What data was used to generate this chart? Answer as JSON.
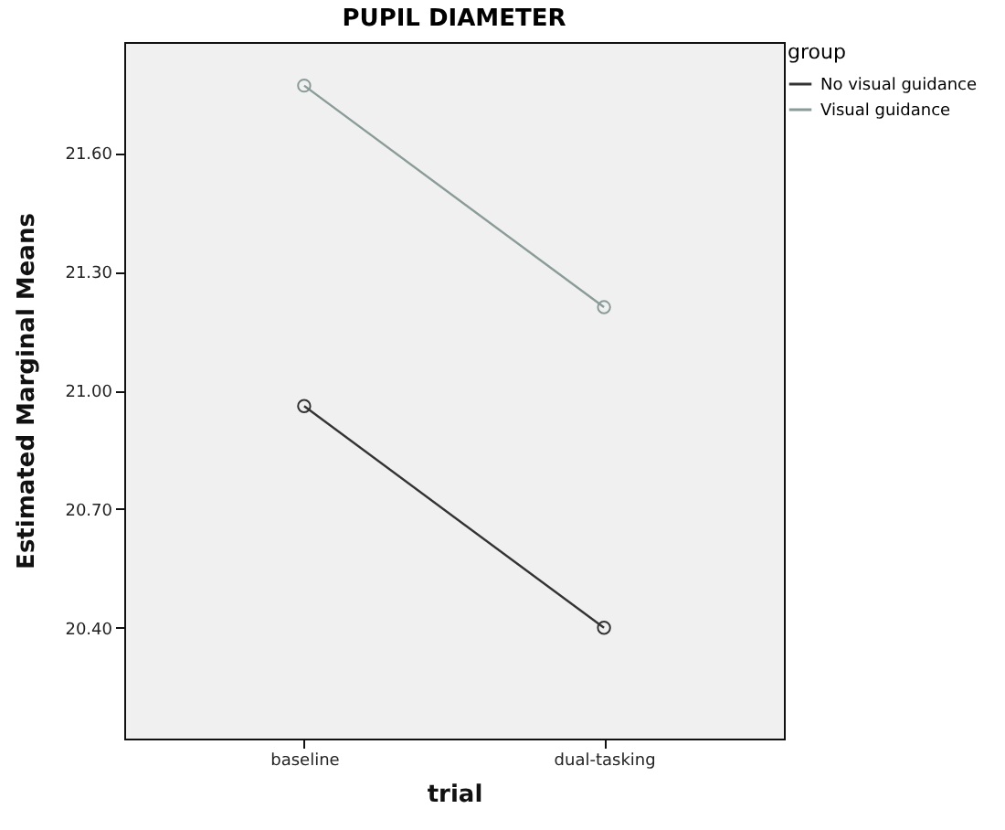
{
  "chart_data": {
    "type": "line",
    "title": "PUPIL DIAMETER",
    "xlabel": "trial",
    "ylabel": "Estimated Marginal Means",
    "legend_title": "group",
    "categories": [
      "baseline",
      "dual-tasking"
    ],
    "series": [
      {
        "name": "No visual guidance",
        "color": "#333333",
        "values": [
          20.96,
          20.4
        ]
      },
      {
        "name": "Visual guidance",
        "color": "#8a9b98",
        "values": [
          21.77,
          21.21
        ]
      }
    ],
    "ylim": [
      20.12,
      21.88
    ],
    "yticks": [
      {
        "value": 20.4,
        "label": "20.40"
      },
      {
        "value": 20.7,
        "label": "20.70"
      },
      {
        "value": 21.0,
        "label": "21.00"
      },
      {
        "value": 21.3,
        "label": "21.30"
      },
      {
        "value": 21.6,
        "label": "21.60"
      }
    ],
    "grid": false,
    "legend": "top right",
    "marker": "circle",
    "line_style": "solid"
  }
}
